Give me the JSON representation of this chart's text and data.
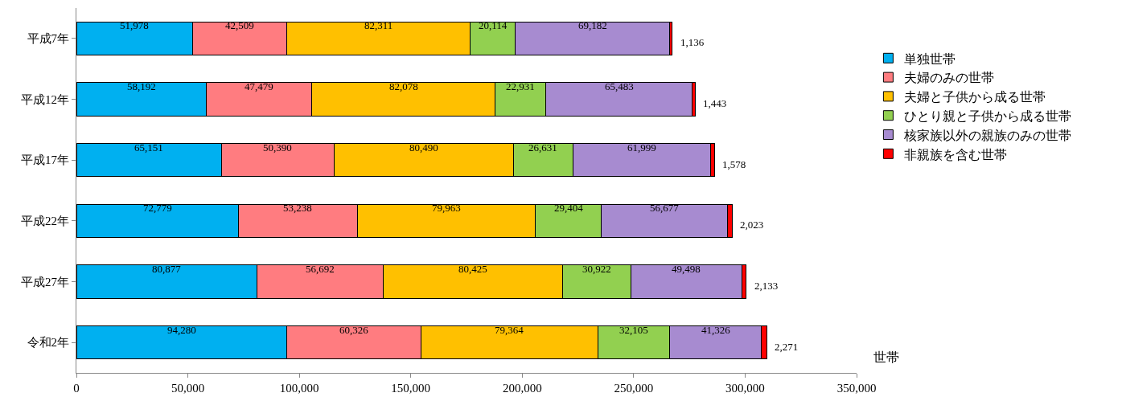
{
  "chart_data": {
    "type": "bar",
    "orientation": "horizontal",
    "stacked": true,
    "categories": [
      "平成7年",
      "平成12年",
      "平成17年",
      "平成22年",
      "平成27年",
      "令和2年"
    ],
    "series": [
      {
        "name": "単独世帯",
        "color": "#00b0f0",
        "values": [
          51978,
          58192,
          65151,
          72779,
          80877,
          94280
        ],
        "value_labels": [
          "51,978",
          "58,192",
          "65,151",
          "72,779",
          "80,877",
          "94,280"
        ]
      },
      {
        "name": "夫婦のみの世帯",
        "color": "#ff7c80",
        "values": [
          42509,
          47479,
          50390,
          53238,
          56692,
          60326
        ],
        "value_labels": [
          "42,509",
          "47,479",
          "50,390",
          "53,238",
          "56,692",
          "60,326"
        ]
      },
      {
        "name": "夫婦と子供から成る世帯",
        "color": "#ffc000",
        "values": [
          82311,
          82078,
          80490,
          79963,
          80425,
          79364
        ],
        "value_labels": [
          "82,311",
          "82,078",
          "80,490",
          "79,963",
          "80,425",
          "79,364"
        ]
      },
      {
        "name": "ひとり親と子供から成る世帯",
        "color": "#92d050",
        "values": [
          20114,
          22931,
          26631,
          29404,
          30922,
          32105
        ],
        "value_labels": [
          "20,114",
          "22,931",
          "26,631",
          "29,404",
          "30,922",
          "32,105"
        ]
      },
      {
        "name": "核家族以外の親族のみの世帯",
        "color": "#a78bd0",
        "values": [
          69182,
          65483,
          61999,
          56677,
          49498,
          41326
        ],
        "value_labels": [
          "69,182",
          "65,483",
          "61,999",
          "56,677",
          "49,498",
          "41,326"
        ]
      },
      {
        "name": "非親族を含む世帯",
        "color": "#ff0000",
        "values": [
          1136,
          1443,
          1578,
          2023,
          2133,
          2271
        ],
        "value_labels": [
          "1,136",
          "1,443",
          "1,578",
          "2,023",
          "2,133",
          "2,271"
        ]
      }
    ],
    "xlim": [
      0,
      350000
    ],
    "xticks": [
      {
        "value": 0,
        "label": "0"
      },
      {
        "value": 50000,
        "label": "50,000"
      },
      {
        "value": 100000,
        "label": "100,000"
      },
      {
        "value": 150000,
        "label": "150,000"
      },
      {
        "value": 200000,
        "label": "200,000"
      },
      {
        "value": 250000,
        "label": "250,000"
      },
      {
        "value": 300000,
        "label": "300,000"
      },
      {
        "value": 350000,
        "label": "350,000"
      }
    ],
    "annotations": [
      "世帯"
    ],
    "grid": false,
    "legend": "right"
  }
}
